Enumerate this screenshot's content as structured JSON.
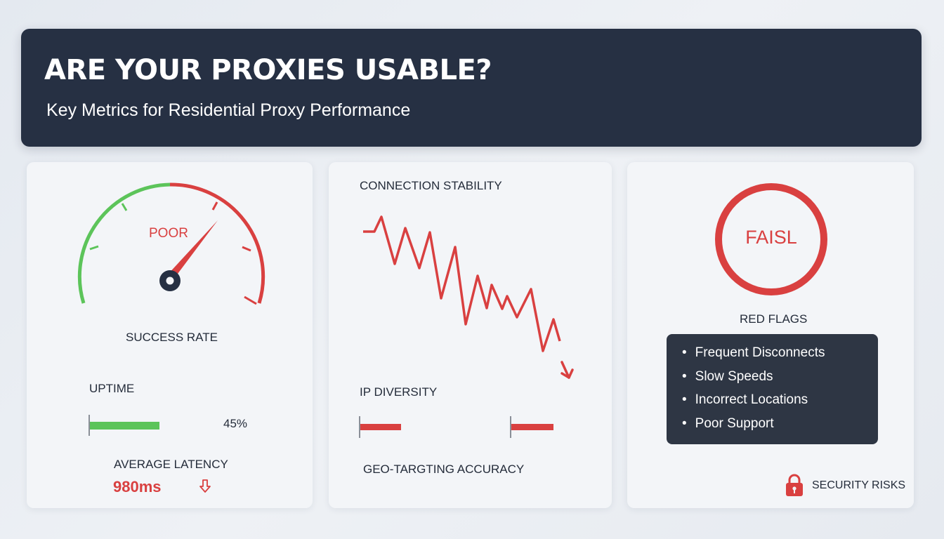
{
  "header": {
    "title": "ARE YOUR PROXIES USABLE?",
    "subtitle": "Key Metrics for Residential Proxy Performance"
  },
  "success_rate": {
    "gauge_label": "POOR",
    "label": "SUCCESS RATE"
  },
  "uptime": {
    "label": "UPTIME",
    "value": "45%",
    "fill_fraction": 0.45
  },
  "latency": {
    "label": "AVERAGE LATENCY",
    "value": "980ms",
    "trend_icon": "arrow-down-icon"
  },
  "stability": {
    "label": "CONNECTION STABILITY",
    "trend_icon": "arrow-down-icon"
  },
  "ip_diversity": {
    "label": "IP DIVERSITY"
  },
  "geo": {
    "label": "GEO-TARGTING ACCURACY"
  },
  "red_flags": {
    "ring_text": "FAISL",
    "label": "RED FLAGS",
    "items": [
      "Frequent Disconnects",
      "Slow Speeds",
      "Incorrect Locations",
      "Poor Support"
    ]
  },
  "security": {
    "label": "SECURITY RISKS",
    "icon": "lock-icon"
  },
  "colors": {
    "header_bg": "#263043",
    "good": "#5cc45a",
    "bad": "#d94040",
    "card_bg": "#f3f5f8"
  }
}
